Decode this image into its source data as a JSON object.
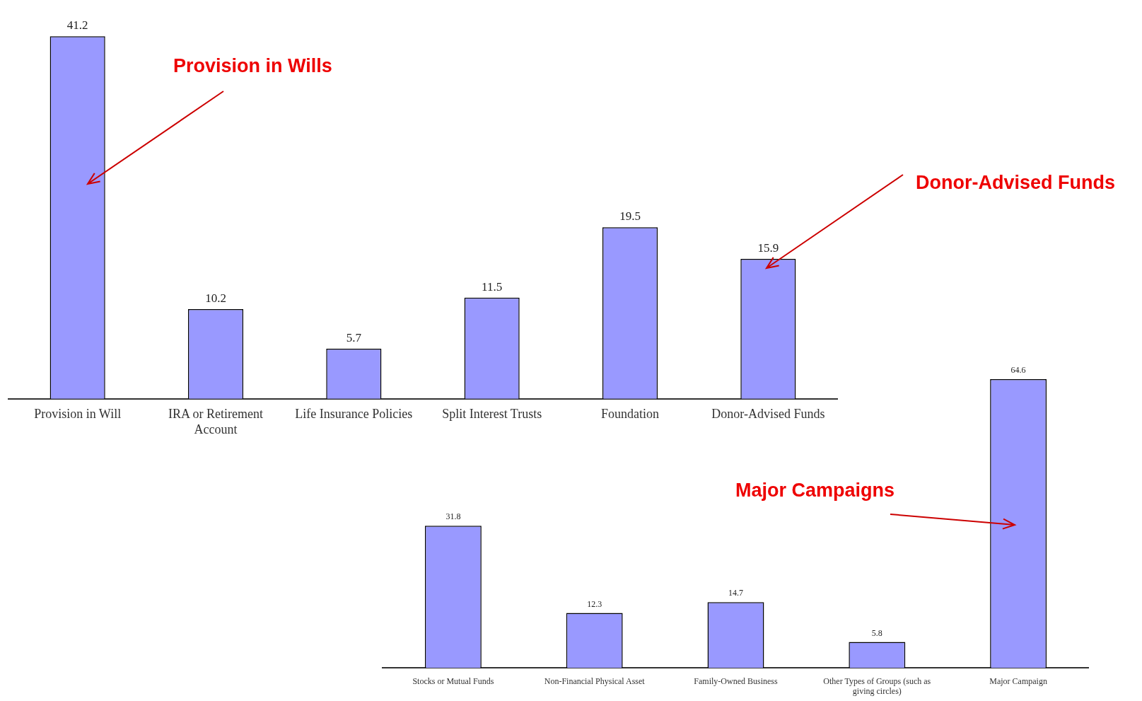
{
  "chart_data": [
    {
      "type": "bar",
      "categories": [
        "Provision in Will",
        "IRA or Retirement Account",
        "Life Insurance Policies",
        "Split Interest Trusts",
        "Foundation",
        "Donor-Advised Funds"
      ],
      "values": [
        41.2,
        10.2,
        5.7,
        11.5,
        19.5,
        15.9
      ],
      "color": "#9999ff",
      "data_labels": true,
      "grid": false,
      "legend": false,
      "tick_labels": "x",
      "annotations": [
        "Provision in Wills",
        "Donor-Advised Funds"
      ]
    },
    {
      "type": "bar",
      "categories": [
        "Stocks or Mutual Funds",
        "Non-Financial Physical Asset",
        "Family-Owned Business",
        "Other Types of Groups (such as giving circles)",
        "Major Campaign"
      ],
      "values": [
        31.8,
        12.3,
        14.7,
        5.8,
        64.6
      ],
      "color": "#9999ff",
      "data_labels": true,
      "grid": false,
      "legend": false,
      "tick_labels": "x",
      "annotations": [
        "Major Campaigns"
      ]
    }
  ]
}
